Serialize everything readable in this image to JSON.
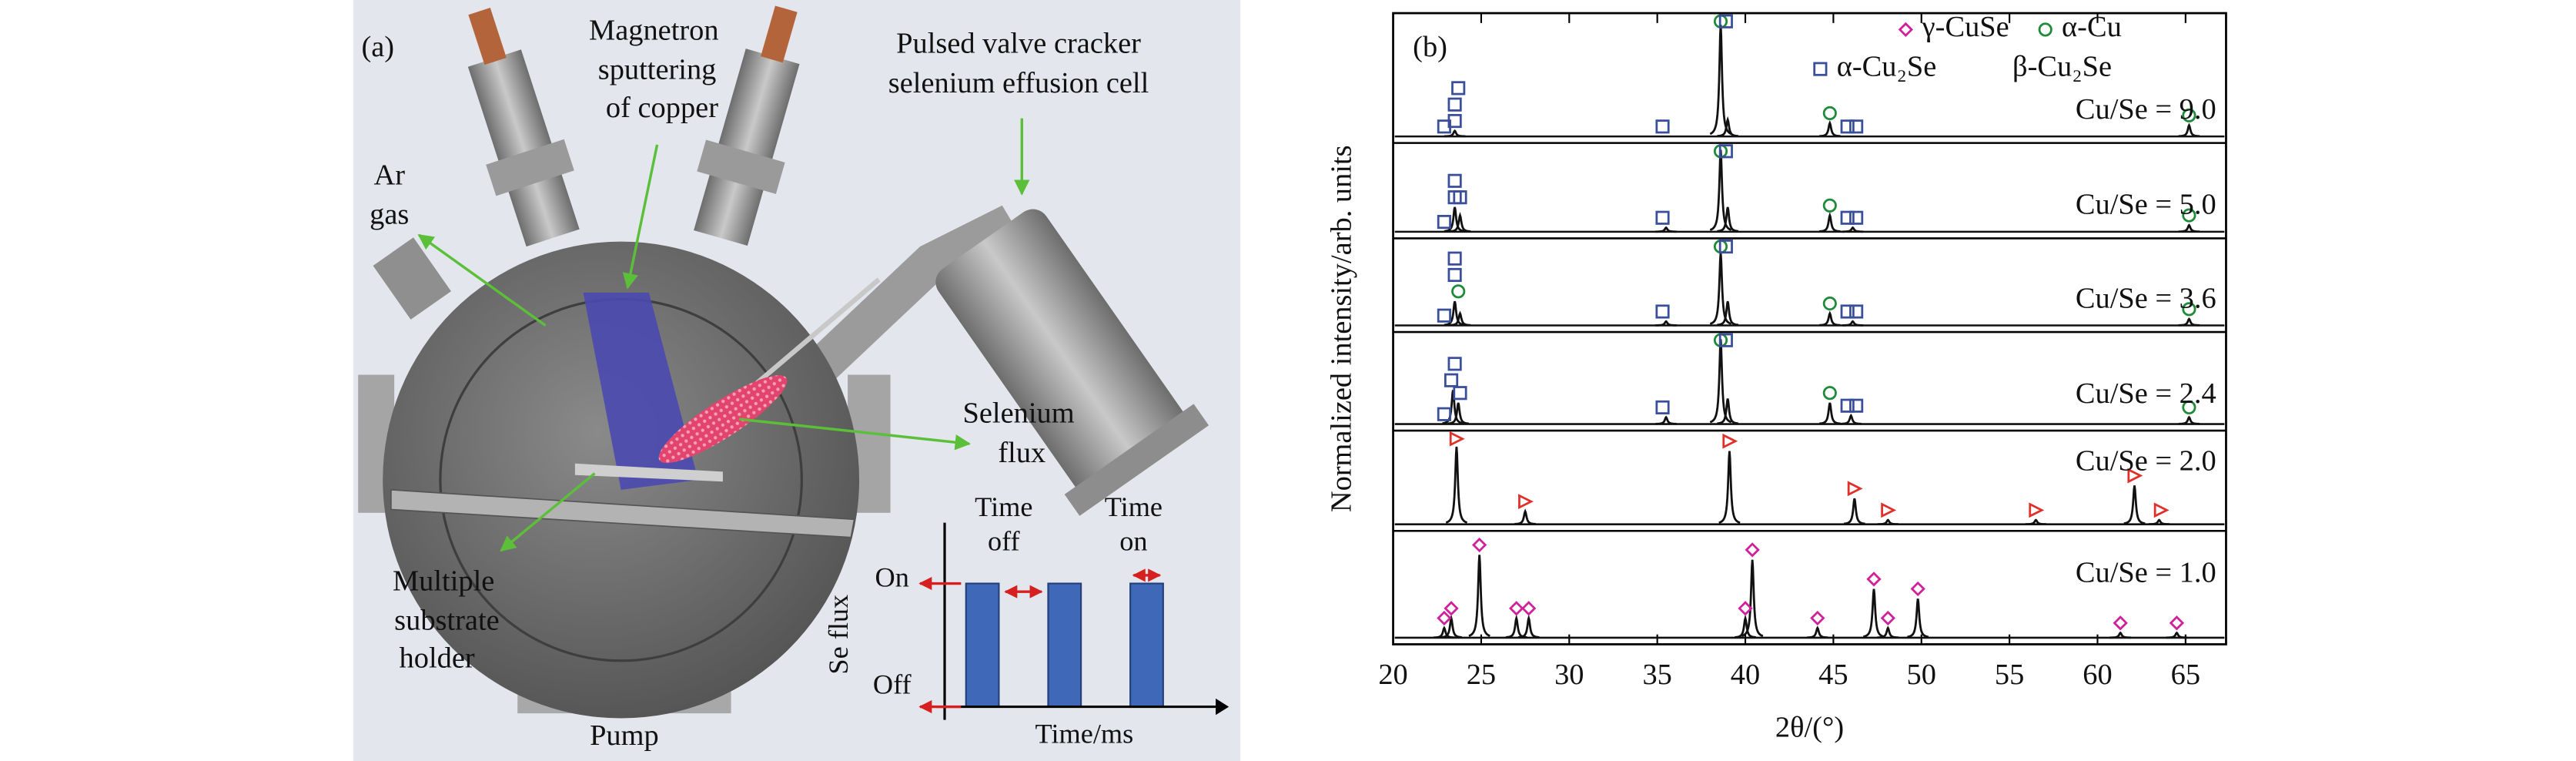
{
  "diagram": {
    "panel_label": "(a)",
    "labels": {
      "magnetron": [
        "Magnetron",
        "sputtering",
        "of copper"
      ],
      "cracker": [
        "Pulsed valve cracker",
        "selenium effusion cell"
      ],
      "ar": [
        "Ar",
        "gas"
      ],
      "selenium": [
        "Selenium",
        "flux"
      ],
      "substrate": [
        "Multiple",
        "substrate",
        "holder"
      ],
      "pump": "Pump"
    },
    "inset": {
      "time_off": [
        "Time",
        "off"
      ],
      "time_on": [
        "Time",
        "on"
      ],
      "on": "On",
      "off": "Off",
      "ylabel": "Se flux",
      "xlabel": "Time/ms"
    }
  },
  "chart_data": {
    "type": "line",
    "panel_label": "(b)",
    "xlabel": "2θ/(°)",
    "ylabel": "Normalized intensity/arb. units",
    "xlim": [
      20,
      67.3
    ],
    "xticks": [
      20,
      25,
      30,
      35,
      40,
      45,
      50,
      55,
      60,
      65
    ],
    "legend": [
      {
        "label": "γ-CuSe",
        "symbol": "diamond",
        "color": "#d0209a"
      },
      {
        "label": "α-Cu",
        "symbol": "circle",
        "color": "#1f8a3a"
      },
      {
        "label": "α-Cu₂Se",
        "symbol": "square",
        "color": "#3a4f9a"
      },
      {
        "label": "β-Cu₂Se",
        "symbol": "triangle",
        "color": "#e0302a"
      }
    ],
    "series": [
      {
        "name": "Cu/Se = 9.0",
        "peaks_x": [
          23.5,
          38.6,
          39.0,
          44.8,
          65.2
        ],
        "peaks_y": [
          0.05,
          1.0,
          0.15,
          0.12,
          0.1
        ],
        "phase_marks": [
          [],
          [
            38.6,
            44.8,
            65.2
          ],
          [
            22.9,
            23.5,
            23.5,
            23.7,
            35.3,
            38.9,
            45.8,
            46.3
          ],
          []
        ]
      },
      {
        "name": "Cu/Se = 5.0",
        "peaks_x": [
          23.5,
          23.8,
          35.5,
          38.6,
          39.0,
          44.8,
          46.1,
          65.2
        ],
        "peaks_y": [
          0.3,
          0.2,
          0.05,
          1.0,
          0.3,
          0.2,
          0.05,
          0.08
        ],
        "phase_marks": [
          [],
          [
            38.6,
            44.8,
            65.2
          ],
          [
            22.9,
            23.5,
            23.5,
            23.8,
            35.3,
            38.9,
            45.8,
            46.3
          ],
          []
        ]
      },
      {
        "name": "Cu/Se = 3.6",
        "peaks_x": [
          23.5,
          23.8,
          35.5,
          38.6,
          39.0,
          44.8,
          46.1,
          65.2
        ],
        "peaks_y": [
          0.3,
          0.15,
          0.05,
          0.9,
          0.3,
          0.15,
          0.05,
          0.08
        ],
        "phase_marks": [
          [],
          [
            23.7,
            38.6,
            44.8,
            65.2
          ],
          [
            22.9,
            23.5,
            23.5,
            35.3,
            38.9,
            45.8,
            46.3
          ],
          []
        ]
      },
      {
        "name": "Cu/Se = 2.4",
        "peaks_x": [
          23.4,
          23.7,
          35.5,
          38.6,
          39.0,
          44.8,
          46.0,
          65.2
        ],
        "peaks_y": [
          0.4,
          0.25,
          0.08,
          1.0,
          0.3,
          0.25,
          0.1,
          0.08
        ],
        "phase_marks": [
          [],
          [
            38.6,
            44.8,
            65.2
          ],
          [
            22.9,
            23.3,
            23.5,
            23.8,
            35.3,
            38.9,
            45.8,
            46.3
          ],
          []
        ]
      },
      {
        "name": "Cu/Se = 2.0",
        "peaks_x": [
          23.6,
          27.5,
          39.1,
          46.2,
          48.1,
          56.5,
          62.1,
          63.5
        ],
        "peaks_y": [
          0.9,
          0.15,
          0.85,
          0.3,
          0.05,
          0.05,
          0.45,
          0.05
        ],
        "phase_marks": [
          [],
          [],
          [],
          [
            23.6,
            27.5,
            39.1,
            46.2,
            48.1,
            56.5,
            62.1,
            63.6
          ]
        ]
      },
      {
        "name": "Cu/Se = 1.0",
        "peaks_x": [
          22.9,
          23.3,
          24.9,
          27.0,
          27.7,
          40.0,
          40.4,
          44.1,
          47.3,
          48.1,
          49.8,
          61.3,
          64.5
        ],
        "peaks_y": [
          0.1,
          0.2,
          0.85,
          0.2,
          0.2,
          0.2,
          0.8,
          0.1,
          0.5,
          0.1,
          0.4,
          0.05,
          0.05
        ],
        "phase_marks": [
          [
            22.9,
            23.3,
            24.9,
            27.0,
            27.7,
            40.0,
            40.4,
            44.1,
            47.3,
            48.1,
            49.8,
            61.3,
            64.5
          ],
          [],
          [],
          []
        ]
      }
    ]
  }
}
